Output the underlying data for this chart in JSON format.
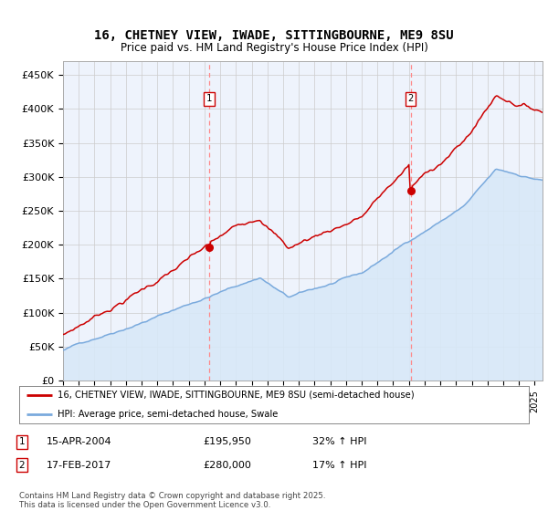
{
  "title": "16, CHETNEY VIEW, IWADE, SITTINGBOURNE, ME9 8SU",
  "subtitle": "Price paid vs. HM Land Registry's House Price Index (HPI)",
  "ylabel_ticks": [
    "£0",
    "£50K",
    "£100K",
    "£150K",
    "£200K",
    "£250K",
    "£300K",
    "£350K",
    "£400K",
    "£450K"
  ],
  "ytick_vals": [
    0,
    50000,
    100000,
    150000,
    200000,
    250000,
    300000,
    350000,
    400000,
    450000
  ],
  "ylim": [
    0,
    470000
  ],
  "xlim_start": 1995.0,
  "xlim_end": 2025.5,
  "purchase1_year": 2004.29,
  "purchase1_price": 195950,
  "purchase2_year": 2017.12,
  "purchase2_price": 280000,
  "legend_property": "16, CHETNEY VIEW, IWADE, SITTINGBOURNE, ME9 8SU (semi-detached house)",
  "legend_hpi": "HPI: Average price, semi-detached house, Swale",
  "footer": "Contains HM Land Registry data © Crown copyright and database right 2025.\nThis data is licensed under the Open Government Licence v3.0.",
  "property_color": "#cc0000",
  "hpi_color": "#7aaadd",
  "hpi_fill_color": "#d8e8f8",
  "background_color": "#eef3fc",
  "grid_color": "#cccccc",
  "vline_color": "#ff8888"
}
